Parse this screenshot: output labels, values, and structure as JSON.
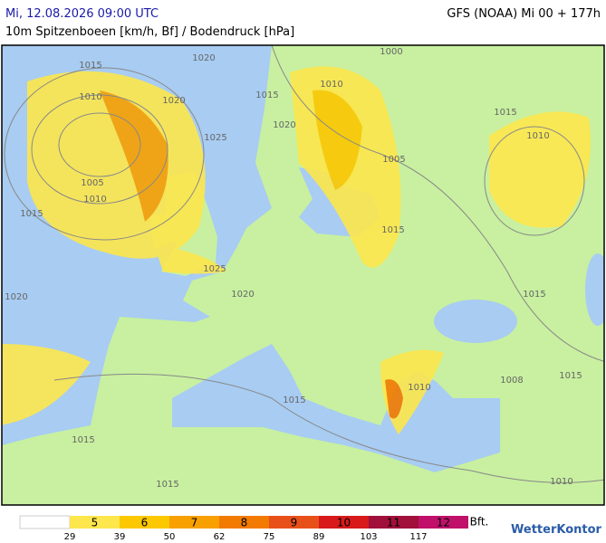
{
  "header": {
    "title_left": "Mi, 12.08.2026 09:00 UTC",
    "title_right": "GFS (NOAA) Mi 00 + 177h",
    "subtitle": "10m Spitzenboeen [km/h, Bf] / Bodendruck [hPa]"
  },
  "isobar_labels": [
    "1015",
    "1020",
    "1010",
    "1020",
    "1015",
    "1025",
    "1005",
    "1010",
    "1015",
    "1020",
    "1025",
    "1020",
    "1000",
    "1010",
    "1005",
    "1015",
    "1015",
    "1010",
    "1015",
    "1010",
    "1015",
    "1015",
    "1015",
    "1008",
    "1010",
    "1015",
    "1020"
  ],
  "legend": {
    "classes": [
      {
        "bft": "5",
        "color": "#fde74c"
      },
      {
        "bft": "6",
        "color": "#fcc800"
      },
      {
        "bft": "7",
        "color": "#f7a000"
      },
      {
        "bft": "8",
        "color": "#f27a00"
      },
      {
        "bft": "9",
        "color": "#e8501a"
      },
      {
        "bft": "10",
        "color": "#d81a1a"
      },
      {
        "bft": "11",
        "color": "#a0103a"
      },
      {
        "bft": "12",
        "color": "#c0106a"
      }
    ],
    "kmh": [
      29,
      39,
      50,
      62,
      75,
      89,
      103,
      117
    ],
    "unit": "Bft."
  },
  "logo": "WetterKontor"
}
